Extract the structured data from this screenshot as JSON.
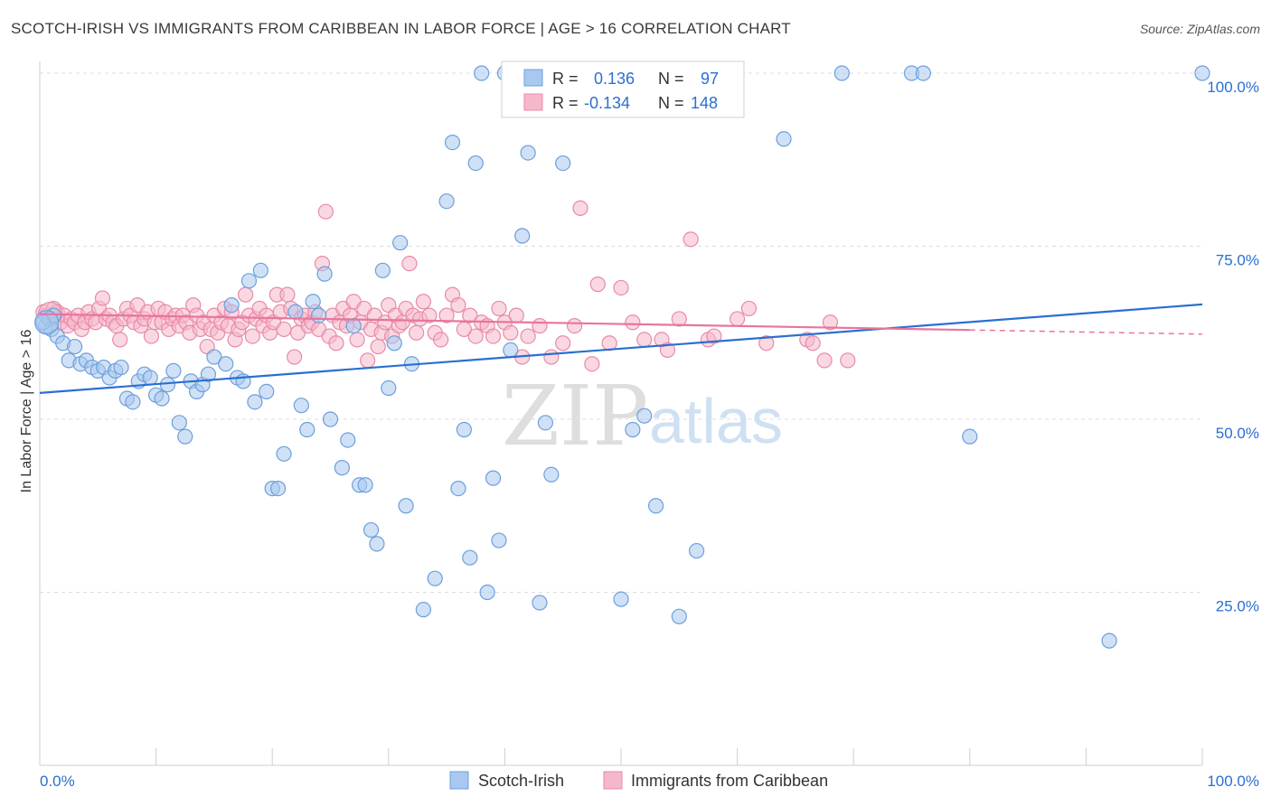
{
  "header": {
    "title": "SCOTCH-IRISH VS IMMIGRANTS FROM CARIBBEAN IN LABOR FORCE | AGE > 16 CORRELATION CHART",
    "source": "Source: ZipAtlas.com"
  },
  "watermark": {
    "zip": "ZIP",
    "atlas": "atlas"
  },
  "legend_box": {
    "rows": [
      {
        "r_label": "R =",
        "r_value": "0.136",
        "n_label": "N =",
        "n_value": "97"
      },
      {
        "r_label": "R =",
        "r_value": "-0.134",
        "n_label": "N =",
        "n_value": "148"
      }
    ]
  },
  "colors": {
    "blue_fill": "#a9c8ef",
    "blue_stroke": "#6c9fdc",
    "blue_line": "#2a6fd1",
    "pink_fill": "#f5b8cb",
    "pink_stroke": "#e88aa8",
    "pink_line": "#e8759b",
    "value_text": "#2a6fd1",
    "grid": "#dcdcdc"
  },
  "chart_data": {
    "type": "scatter",
    "title": "SCOTCH-IRISH VS IMMIGRANTS FROM CARIBBEAN IN LABOR FORCE | AGE > 16 CORRELATION CHART",
    "xlabel": "",
    "ylabel": "In Labor Force | Age > 16",
    "xlim": [
      0,
      100
    ],
    "ylim": [
      0,
      102
    ],
    "x_tick_labels": [
      "0.0%",
      "100.0%"
    ],
    "y_tick_labels": [
      "25.0%",
      "50.0%",
      "75.0%",
      "100.0%"
    ],
    "y_ticks": [
      25,
      50,
      75,
      100
    ],
    "grid": true,
    "legend_position": "bottom",
    "series": [
      {
        "name": "Scotch-Irish",
        "r": 0.136,
        "n": 97,
        "trend": {
          "x0": 0,
          "y0": 53.8,
          "x1": 100,
          "y1": 66.6
        },
        "points": [
          [
            0.5,
            63.5
          ],
          [
            0.8,
            64.5
          ],
          [
            1.0,
            63
          ],
          [
            1.2,
            65
          ],
          [
            1.5,
            62
          ],
          [
            2.0,
            61
          ],
          [
            2.5,
            58.5
          ],
          [
            3.0,
            60.5
          ],
          [
            3.5,
            58
          ],
          [
            4.0,
            58.5
          ],
          [
            4.5,
            57.5
          ],
          [
            5.0,
            57
          ],
          [
            5.5,
            57.5
          ],
          [
            6.0,
            56
          ],
          [
            6.5,
            57
          ],
          [
            7.0,
            57.5
          ],
          [
            7.5,
            53
          ],
          [
            8.0,
            52.5
          ],
          [
            8.5,
            55.5
          ],
          [
            9.0,
            56.5
          ],
          [
            9.5,
            56
          ],
          [
            10.0,
            53.5
          ],
          [
            10.5,
            53
          ],
          [
            11.0,
            55
          ],
          [
            11.5,
            57
          ],
          [
            12.0,
            49.5
          ],
          [
            12.5,
            47.5
          ],
          [
            13.0,
            55.5
          ],
          [
            13.5,
            54
          ],
          [
            14.0,
            55
          ],
          [
            14.5,
            56.5
          ],
          [
            15.0,
            59
          ],
          [
            16.0,
            58
          ],
          [
            16.5,
            66.5
          ],
          [
            17.0,
            56
          ],
          [
            17.5,
            55.5
          ],
          [
            18.0,
            70
          ],
          [
            18.5,
            52.5
          ],
          [
            19.0,
            71.5
          ],
          [
            19.5,
            54
          ],
          [
            20.0,
            40
          ],
          [
            20.5,
            40
          ],
          [
            21.0,
            45
          ],
          [
            22.0,
            65.5
          ],
          [
            22.5,
            52
          ],
          [
            23.0,
            48.5
          ],
          [
            23.5,
            67
          ],
          [
            24.0,
            65
          ],
          [
            24.5,
            71
          ],
          [
            25.0,
            50
          ],
          [
            26.0,
            43
          ],
          [
            26.5,
            47
          ],
          [
            27.0,
            63.5
          ],
          [
            27.5,
            40.5
          ],
          [
            28.0,
            40.5
          ],
          [
            28.5,
            34
          ],
          [
            29.0,
            32
          ],
          [
            29.5,
            71.5
          ],
          [
            30.0,
            54.5
          ],
          [
            30.5,
            61
          ],
          [
            31.0,
            75.5
          ],
          [
            31.5,
            37.5
          ],
          [
            32.0,
            58
          ],
          [
            33.0,
            22.5
          ],
          [
            34.0,
            27
          ],
          [
            35.0,
            81.5
          ],
          [
            35.5,
            90
          ],
          [
            36.0,
            40
          ],
          [
            36.5,
            48.5
          ],
          [
            37.0,
            30
          ],
          [
            37.5,
            87
          ],
          [
            38.0,
            100
          ],
          [
            38.5,
            25
          ],
          [
            39.0,
            41.5
          ],
          [
            39.5,
            32.5
          ],
          [
            40.0,
            100
          ],
          [
            40.5,
            60
          ],
          [
            41.5,
            76.5
          ],
          [
            42.0,
            88.5
          ],
          [
            43.0,
            23.5
          ],
          [
            43.5,
            49.5
          ],
          [
            44.0,
            42
          ],
          [
            45.0,
            87
          ],
          [
            50.0,
            24
          ],
          [
            51.0,
            48.5
          ],
          [
            52.0,
            50.5
          ],
          [
            53.0,
            37.5
          ],
          [
            55.0,
            21.5
          ],
          [
            56.5,
            31
          ],
          [
            64.0,
            90.5
          ],
          [
            69.0,
            100
          ],
          [
            75.0,
            100
          ],
          [
            76.0,
            100
          ],
          [
            80.0,
            47.5
          ],
          [
            92.0,
            18
          ],
          [
            100.0,
            100
          ],
          [
            0.3,
            64
          ]
        ]
      },
      {
        "name": "Immigrants from Caribbean",
        "r": -0.134,
        "n": 148,
        "trend": {
          "x0": 0,
          "y0": 65.2,
          "x1": 80,
          "y1": 62.9,
          "dash_x1": 100,
          "dash_y1": 62.3
        },
        "points": [
          [
            0.3,
            65.5
          ],
          [
            0.6,
            65
          ],
          [
            0.9,
            64.5
          ],
          [
            1.2,
            66
          ],
          [
            1.5,
            65.5
          ],
          [
            1.8,
            64
          ],
          [
            2.1,
            65
          ],
          [
            2.4,
            63.5
          ],
          [
            2.7,
            64.5
          ],
          [
            3.0,
            64
          ],
          [
            3.3,
            65
          ],
          [
            3.6,
            63
          ],
          [
            3.9,
            64
          ],
          [
            4.2,
            65.5
          ],
          [
            4.5,
            64.5
          ],
          [
            4.8,
            64
          ],
          [
            5.1,
            66
          ],
          [
            5.4,
            67.5
          ],
          [
            5.7,
            64.5
          ],
          [
            6.0,
            65
          ],
          [
            6.3,
            64
          ],
          [
            6.6,
            63.5
          ],
          [
            6.9,
            61.5
          ],
          [
            7.2,
            64.5
          ],
          [
            7.5,
            66
          ],
          [
            7.8,
            65
          ],
          [
            8.1,
            64
          ],
          [
            8.4,
            66.5
          ],
          [
            8.7,
            63.5
          ],
          [
            9.0,
            64.5
          ],
          [
            9.3,
            65.5
          ],
          [
            9.6,
            62
          ],
          [
            9.9,
            64
          ],
          [
            10.2,
            66
          ],
          [
            10.5,
            64
          ],
          [
            10.8,
            65.5
          ],
          [
            11.1,
            63
          ],
          [
            11.4,
            64.5
          ],
          [
            11.7,
            65
          ],
          [
            12.0,
            63.5
          ],
          [
            12.3,
            65
          ],
          [
            12.6,
            64
          ],
          [
            12.9,
            62.5
          ],
          [
            13.2,
            66.5
          ],
          [
            13.5,
            65
          ],
          [
            13.8,
            63
          ],
          [
            14.1,
            64
          ],
          [
            14.4,
            60.5
          ],
          [
            14.7,
            63
          ],
          [
            15.0,
            65
          ],
          [
            15.3,
            62.5
          ],
          [
            15.6,
            64
          ],
          [
            15.9,
            66
          ],
          [
            16.2,
            63.5
          ],
          [
            16.5,
            65.5
          ],
          [
            16.8,
            61.5
          ],
          [
            17.1,
            63
          ],
          [
            17.4,
            64
          ],
          [
            17.7,
            68
          ],
          [
            18.0,
            65
          ],
          [
            18.3,
            62
          ],
          [
            18.6,
            64.5
          ],
          [
            18.9,
            66
          ],
          [
            19.2,
            63.5
          ],
          [
            19.5,
            65
          ],
          [
            19.8,
            62.5
          ],
          [
            20.1,
            64
          ],
          [
            20.4,
            68
          ],
          [
            20.7,
            65.5
          ],
          [
            21.0,
            63
          ],
          [
            21.3,
            68
          ],
          [
            21.6,
            66
          ],
          [
            21.9,
            59
          ],
          [
            22.2,
            62.5
          ],
          [
            22.5,
            64.5
          ],
          [
            22.8,
            65
          ],
          [
            23.1,
            63.5
          ],
          [
            23.4,
            64
          ],
          [
            23.7,
            65.5
          ],
          [
            24.0,
            63
          ],
          [
            24.3,
            72.5
          ],
          [
            24.6,
            80
          ],
          [
            24.9,
            62
          ],
          [
            25.2,
            65
          ],
          [
            25.5,
            61
          ],
          [
            25.8,
            64
          ],
          [
            26.1,
            66
          ],
          [
            26.4,
            63.5
          ],
          [
            26.7,
            65
          ],
          [
            27.0,
            67
          ],
          [
            27.3,
            61.5
          ],
          [
            27.6,
            64
          ],
          [
            27.9,
            66
          ],
          [
            28.2,
            58.5
          ],
          [
            28.5,
            63
          ],
          [
            28.8,
            65
          ],
          [
            29.1,
            60.5
          ],
          [
            29.4,
            62.5
          ],
          [
            29.7,
            64
          ],
          [
            30.0,
            66.5
          ],
          [
            30.3,
            62
          ],
          [
            30.6,
            65
          ],
          [
            30.9,
            63.5
          ],
          [
            31.2,
            64
          ],
          [
            31.5,
            66
          ],
          [
            31.8,
            72.5
          ],
          [
            32.1,
            65
          ],
          [
            32.4,
            62.5
          ],
          [
            32.7,
            64.5
          ],
          [
            33.0,
            67
          ],
          [
            33.5,
            65
          ],
          [
            34.0,
            62.5
          ],
          [
            34.5,
            61.5
          ],
          [
            35.0,
            65
          ],
          [
            35.5,
            68
          ],
          [
            36.0,
            66.5
          ],
          [
            36.5,
            63
          ],
          [
            37.0,
            65
          ],
          [
            37.5,
            62
          ],
          [
            38.0,
            64
          ],
          [
            38.5,
            63.5
          ],
          [
            39.0,
            62
          ],
          [
            39.5,
            66
          ],
          [
            40.0,
            64
          ],
          [
            40.5,
            62.5
          ],
          [
            41.0,
            65
          ],
          [
            41.5,
            59
          ],
          [
            42.0,
            62
          ],
          [
            43.0,
            63.5
          ],
          [
            44.0,
            59
          ],
          [
            45.0,
            61
          ],
          [
            46.0,
            63.5
          ],
          [
            46.5,
            80.5
          ],
          [
            47.5,
            58
          ],
          [
            48.0,
            69.5
          ],
          [
            49.0,
            61
          ],
          [
            50.0,
            69
          ],
          [
            51.0,
            64
          ],
          [
            52.0,
            61.5
          ],
          [
            53.5,
            61.5
          ],
          [
            55.0,
            64.5
          ],
          [
            56.0,
            76
          ],
          [
            57.5,
            61.5
          ],
          [
            60.0,
            64.5
          ],
          [
            61.0,
            66
          ],
          [
            62.5,
            61
          ],
          [
            66.0,
            61.5
          ],
          [
            66.5,
            61
          ],
          [
            67.5,
            58.5
          ],
          [
            69.5,
            58.5
          ],
          [
            68.0,
            64
          ],
          [
            58.0,
            62
          ],
          [
            54.0,
            60
          ]
        ]
      }
    ]
  }
}
